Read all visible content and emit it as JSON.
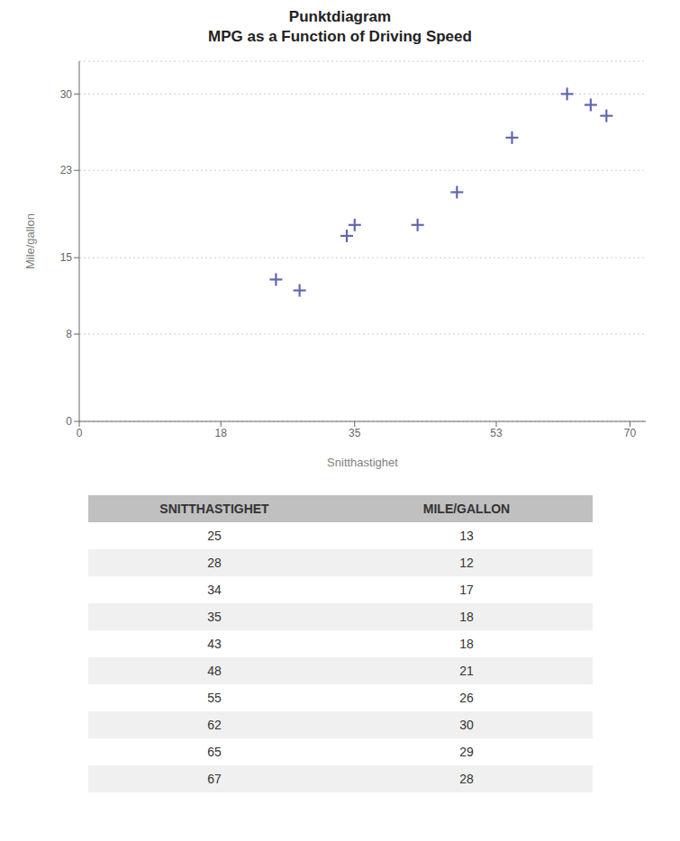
{
  "chart_data": {
    "type": "scatter",
    "title": "Punktdiagram",
    "subtitle": "MPG as a Function of Driving Speed",
    "xlabel": "Snitthastighet",
    "ylabel": "Mile/gallon",
    "x": [
      25,
      28,
      34,
      35,
      43,
      48,
      55,
      62,
      65,
      67
    ],
    "values": [
      13,
      12,
      17,
      18,
      18,
      21,
      26,
      30,
      29,
      28
    ],
    "color": "#6068b0",
    "marker": "plus",
    "xlim": [
      0,
      72
    ],
    "ylim": [
      0,
      33
    ],
    "xticks": [
      0,
      18,
      35,
      53,
      70
    ],
    "yticks": [
      0,
      8,
      15,
      23,
      30
    ],
    "grid": "y",
    "table": {
      "columns": [
        "SNITTHASTIGHET",
        "MILE/GALLON"
      ],
      "rows": [
        [
          25,
          13
        ],
        [
          28,
          12
        ],
        [
          34,
          17
        ],
        [
          35,
          18
        ],
        [
          43,
          18
        ],
        [
          48,
          21
        ],
        [
          55,
          26
        ],
        [
          62,
          30
        ],
        [
          65,
          29
        ],
        [
          67,
          28
        ]
      ]
    }
  }
}
